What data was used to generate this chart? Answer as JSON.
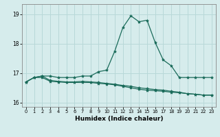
{
  "x": [
    0,
    1,
    2,
    3,
    4,
    5,
    6,
    7,
    8,
    9,
    10,
    11,
    12,
    13,
    14,
    15,
    16,
    17,
    18,
    19,
    20,
    21,
    22,
    23
  ],
  "line1": [
    16.7,
    16.85,
    16.9,
    16.9,
    16.85,
    16.85,
    16.85,
    16.9,
    16.9,
    17.05,
    17.1,
    17.75,
    18.55,
    18.95,
    18.75,
    18.8,
    18.05,
    17.45,
    17.25,
    16.85,
    16.85,
    16.85,
    16.85,
    16.85
  ],
  "line2": [
    16.7,
    16.85,
    16.9,
    16.75,
    16.72,
    16.7,
    16.7,
    16.72,
    16.7,
    16.68,
    16.65,
    16.62,
    16.58,
    16.55,
    16.5,
    16.47,
    16.44,
    16.42,
    16.38,
    16.35,
    16.3,
    16.28,
    16.25,
    16.25
  ],
  "line3": [
    16.7,
    16.85,
    16.85,
    16.72,
    16.7,
    16.68,
    16.68,
    16.68,
    16.68,
    16.65,
    16.63,
    16.6,
    16.55,
    16.5,
    16.45,
    16.42,
    16.4,
    16.38,
    16.35,
    16.33,
    16.3,
    16.28,
    16.25,
    16.25
  ],
  "background_color": "#d6ecec",
  "grid_color": "#b8d8d8",
  "line_color": "#1a6b5a",
  "xlabel": "Humidex (Indice chaleur)",
  "ylim": [
    15.85,
    19.35
  ],
  "xlim": [
    -0.5,
    23.5
  ],
  "yticks": [
    16,
    17,
    18,
    19
  ],
  "xticks": [
    0,
    1,
    2,
    3,
    4,
    5,
    6,
    7,
    8,
    9,
    10,
    11,
    12,
    13,
    14,
    15,
    16,
    17,
    18,
    19,
    20,
    21,
    22,
    23
  ]
}
